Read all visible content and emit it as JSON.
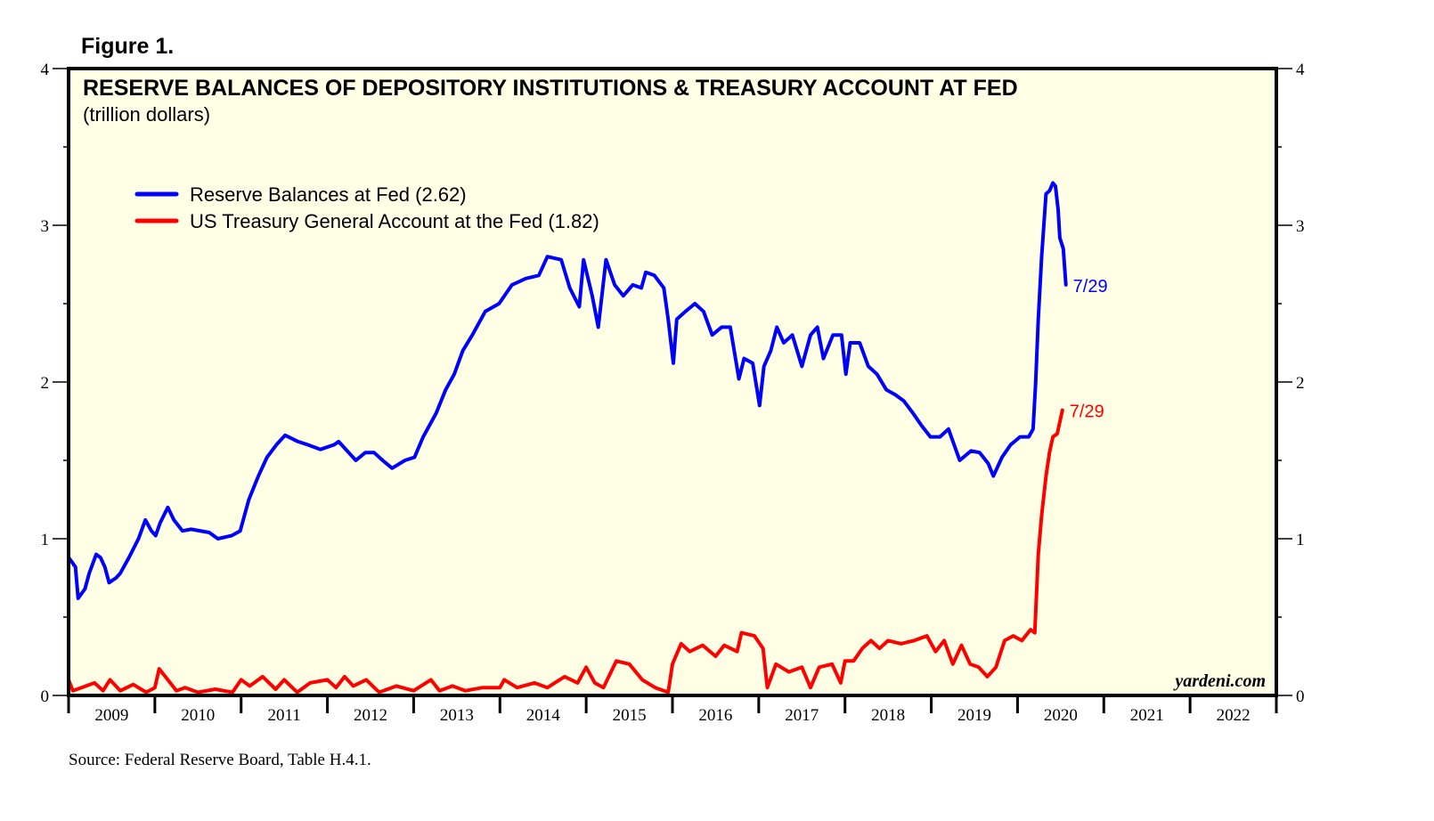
{
  "figure_label": "Figure 1.",
  "source": "Source: Federal Reserve Board, Table H.4.1.",
  "watermark": "yardeni.com",
  "chart_data": {
    "type": "line",
    "title": "RESERVE BALANCES OF DEPOSITORY INSTITUTIONS & TREASURY ACCOUNT AT FED",
    "subtitle": "(trillion dollars)",
    "xlabel": "",
    "ylabel": "",
    "xlim": [
      2009,
      2023
    ],
    "ylim": [
      0,
      4
    ],
    "y_ticks": [
      "0",
      "1",
      "2",
      "3",
      "4"
    ],
    "x_tick_labels": [
      "2009",
      "2010",
      "2011",
      "2012",
      "2013",
      "2014",
      "2015",
      "2016",
      "2017",
      "2018",
      "2019",
      "2020",
      "2021",
      "2022"
    ],
    "legend_position": "top-left",
    "series": [
      {
        "name": "Reserve Balances at Fed (2.62)",
        "color": "#0000FF",
        "end_label": "7/29",
        "x": [
          2009.0,
          2009.08,
          2009.11,
          2009.19,
          2009.24,
          2009.32,
          2009.37,
          2009.42,
          2009.47,
          2009.55,
          2009.6,
          2009.7,
          2009.81,
          2009.89,
          2009.96,
          2010.01,
          2010.06,
          2010.15,
          2010.22,
          2010.32,
          2010.42,
          2010.63,
          2010.73,
          2010.89,
          2010.99,
          2011.09,
          2011.2,
          2011.3,
          2011.41,
          2011.51,
          2011.66,
          2011.77,
          2011.92,
          2012.08,
          2012.13,
          2012.23,
          2012.33,
          2012.44,
          2012.54,
          2012.64,
          2012.75,
          2012.9,
          2013.01,
          2013.11,
          2013.26,
          2013.37,
          2013.47,
          2013.57,
          2013.68,
          2013.83,
          2013.99,
          2014.14,
          2014.3,
          2014.45,
          2014.55,
          2014.71,
          2014.81,
          2014.92,
          2014.97,
          2015.07,
          2015.14,
          2015.23,
          2015.33,
          2015.43,
          2015.54,
          2015.64,
          2015.69,
          2015.79,
          2015.9,
          2015.95,
          2016.01,
          2016.05,
          2016.15,
          2016.26,
          2016.36,
          2016.46,
          2016.57,
          2016.67,
          2016.77,
          2016.83,
          2016.93,
          2017.01,
          2017.06,
          2017.14,
          2017.21,
          2017.29,
          2017.39,
          2017.5,
          2017.6,
          2017.68,
          2017.75,
          2017.86,
          2017.96,
          2018.01,
          2018.06,
          2018.17,
          2018.27,
          2018.37,
          2018.48,
          2018.58,
          2018.68,
          2018.79,
          2018.89,
          2018.99,
          2019.1,
          2019.2,
          2019.33,
          2019.46,
          2019.56,
          2019.66,
          2019.72,
          2019.82,
          2019.92,
          2020.03,
          2020.13,
          2020.18,
          2020.21,
          2020.24,
          2020.28,
          2020.33,
          2020.37,
          2020.41,
          2020.44,
          2020.47,
          2020.49,
          2020.53,
          2020.56
        ],
        "values": [
          0.88,
          0.82,
          0.62,
          0.68,
          0.78,
          0.9,
          0.88,
          0.82,
          0.72,
          0.75,
          0.78,
          0.88,
          1.0,
          1.12,
          1.05,
          1.02,
          1.1,
          1.2,
          1.12,
          1.05,
          1.06,
          1.04,
          1.0,
          1.02,
          1.05,
          1.25,
          1.4,
          1.52,
          1.6,
          1.66,
          1.62,
          1.6,
          1.57,
          1.6,
          1.62,
          1.56,
          1.5,
          1.55,
          1.55,
          1.5,
          1.45,
          1.5,
          1.52,
          1.65,
          1.8,
          1.95,
          2.05,
          2.2,
          2.3,
          2.45,
          2.5,
          2.62,
          2.66,
          2.68,
          2.8,
          2.78,
          2.6,
          2.48,
          2.78,
          2.55,
          2.35,
          2.78,
          2.62,
          2.55,
          2.62,
          2.6,
          2.7,
          2.68,
          2.6,
          2.4,
          2.12,
          2.4,
          2.45,
          2.5,
          2.45,
          2.3,
          2.35,
          2.35,
          2.02,
          2.15,
          2.12,
          1.85,
          2.1,
          2.2,
          2.35,
          2.25,
          2.3,
          2.1,
          2.3,
          2.35,
          2.15,
          2.3,
          2.3,
          2.05,
          2.25,
          2.25,
          2.1,
          2.05,
          1.95,
          1.92,
          1.88,
          1.8,
          1.72,
          1.65,
          1.65,
          1.7,
          1.5,
          1.56,
          1.55,
          1.48,
          1.4,
          1.52,
          1.6,
          1.65,
          1.65,
          1.7,
          2.0,
          2.4,
          2.8,
          3.2,
          3.22,
          3.27,
          3.25,
          3.1,
          2.92,
          2.85,
          2.62
        ]
      },
      {
        "name": "US Treasury General Account at the Fed (1.82)",
        "color": "#FF0000",
        "end_label": "7/29",
        "x": [
          2009.0,
          2009.05,
          2009.15,
          2009.3,
          2009.4,
          2009.48,
          2009.6,
          2009.75,
          2009.9,
          2010.0,
          2010.05,
          2010.15,
          2010.25,
          2010.35,
          2010.5,
          2010.7,
          2010.9,
          2011.0,
          2011.1,
          2011.25,
          2011.4,
          2011.5,
          2011.65,
          2011.8,
          2012.0,
          2012.1,
          2012.2,
          2012.3,
          2012.45,
          2012.6,
          2012.8,
          2013.0,
          2013.2,
          2013.3,
          2013.45,
          2013.6,
          2013.8,
          2014.0,
          2014.05,
          2014.2,
          2014.4,
          2014.55,
          2014.75,
          2014.9,
          2015.0,
          2015.1,
          2015.2,
          2015.35,
          2015.5,
          2015.65,
          2015.8,
          2015.95,
          2016.0,
          2016.1,
          2016.2,
          2016.35,
          2016.5,
          2016.6,
          2016.75,
          2016.8,
          2016.95,
          2017.05,
          2017.1,
          2017.2,
          2017.35,
          2017.5,
          2017.6,
          2017.7,
          2017.85,
          2017.95,
          2018.0,
          2018.1,
          2018.2,
          2018.3,
          2018.4,
          2018.5,
          2018.65,
          2018.8,
          2018.95,
          2019.05,
          2019.15,
          2019.25,
          2019.35,
          2019.45,
          2019.55,
          2019.65,
          2019.75,
          2019.85,
          2019.95,
          2020.05,
          2020.15,
          2020.2,
          2020.24,
          2020.28,
          2020.33,
          2020.37,
          2020.41,
          2020.46,
          2020.52
        ],
        "values": [
          0.1,
          0.03,
          0.05,
          0.08,
          0.03,
          0.1,
          0.03,
          0.07,
          0.02,
          0.05,
          0.17,
          0.1,
          0.03,
          0.05,
          0.02,
          0.04,
          0.02,
          0.1,
          0.06,
          0.12,
          0.04,
          0.1,
          0.02,
          0.08,
          0.1,
          0.05,
          0.12,
          0.06,
          0.1,
          0.02,
          0.06,
          0.03,
          0.1,
          0.03,
          0.06,
          0.03,
          0.05,
          0.05,
          0.1,
          0.05,
          0.08,
          0.05,
          0.12,
          0.08,
          0.18,
          0.08,
          0.05,
          0.22,
          0.2,
          0.1,
          0.05,
          0.02,
          0.2,
          0.33,
          0.28,
          0.32,
          0.25,
          0.32,
          0.28,
          0.4,
          0.38,
          0.3,
          0.05,
          0.2,
          0.15,
          0.18,
          0.05,
          0.18,
          0.2,
          0.08,
          0.22,
          0.22,
          0.3,
          0.35,
          0.3,
          0.35,
          0.33,
          0.35,
          0.38,
          0.28,
          0.35,
          0.2,
          0.32,
          0.2,
          0.18,
          0.12,
          0.18,
          0.35,
          0.38,
          0.35,
          0.42,
          0.4,
          0.9,
          1.15,
          1.4,
          1.55,
          1.65,
          1.67,
          1.82
        ]
      }
    ]
  }
}
